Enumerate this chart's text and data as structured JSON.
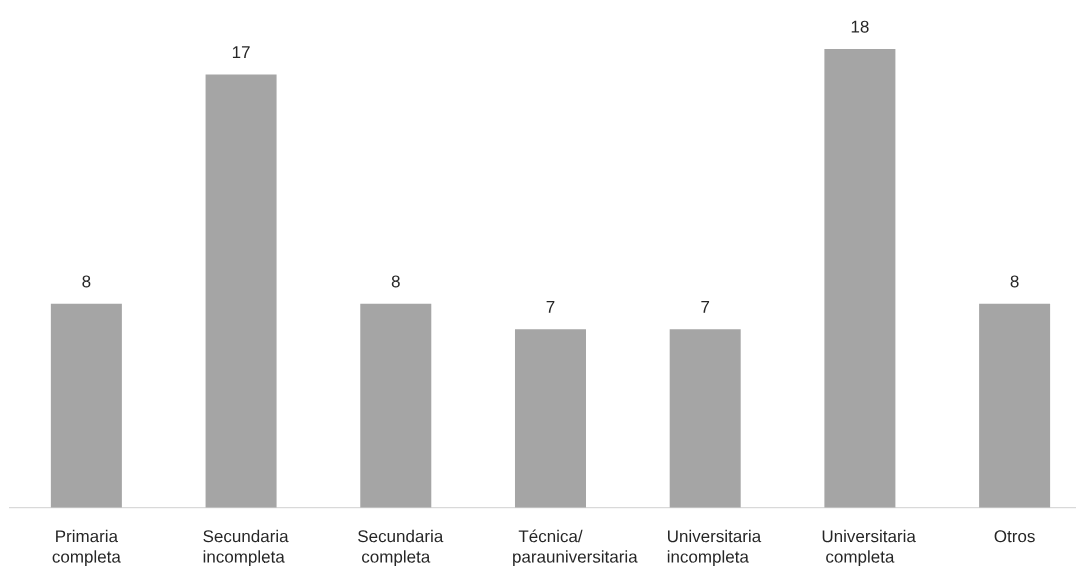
{
  "chart_data": {
    "type": "bar",
    "categories": [
      "Primaria completa",
      "Secundaria incompleta",
      "Secundaria completa",
      "Técnica/ parauniversitaria",
      "Universitaria incompleta",
      "Universitaria completa",
      "Otros"
    ],
    "values": [
      8,
      17,
      8,
      7,
      7,
      18,
      8
    ],
    "color": "#a5a5a5",
    "data_labels": true
  }
}
